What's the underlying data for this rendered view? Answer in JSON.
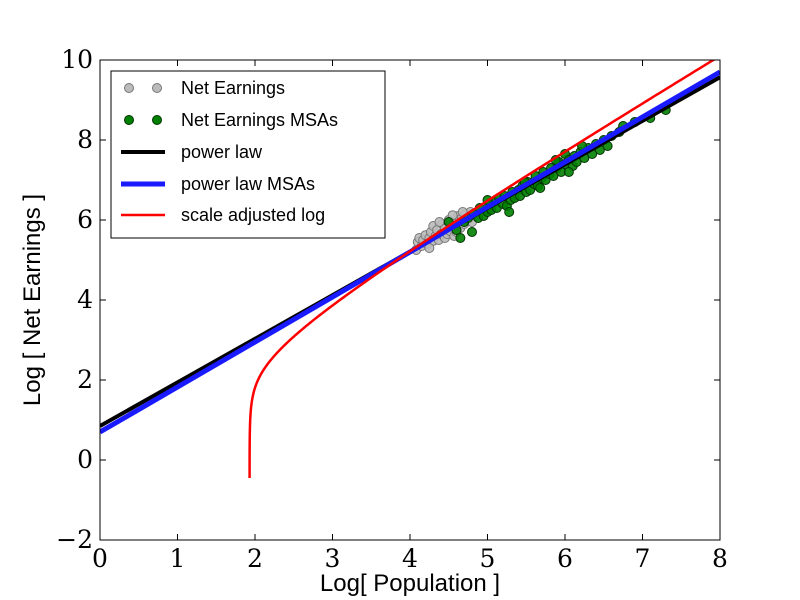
{
  "chart_data": {
    "type": "scatter",
    "xlabel": "Log[ Population ]",
    "ylabel": "Log [ Net Earnings ]",
    "xlim": [
      0,
      8
    ],
    "ylim": [
      -2,
      10
    ],
    "xticks": [
      "0",
      "1",
      "2",
      "3",
      "4",
      "5",
      "6",
      "7",
      "8"
    ],
    "yticks": [
      "−2",
      "0",
      "2",
      "4",
      "6",
      "8",
      "10"
    ],
    "legend_position": "top-left",
    "series": [
      {
        "name": "Net Earnings",
        "kind": "scatter",
        "color": "#bbbbbb",
        "edge": "#777777",
        "points": [
          [
            4.08,
            5.25
          ],
          [
            4.1,
            5.45
          ],
          [
            4.12,
            5.55
          ],
          [
            4.15,
            5.35
          ],
          [
            4.17,
            5.5
          ],
          [
            4.2,
            5.62
          ],
          [
            4.22,
            5.4
          ],
          [
            4.25,
            5.55
          ],
          [
            4.27,
            5.7
          ],
          [
            4.3,
            5.48
          ],
          [
            4.3,
            5.85
          ],
          [
            4.33,
            5.6
          ],
          [
            4.35,
            5.75
          ],
          [
            4.37,
            5.5
          ],
          [
            4.4,
            5.65
          ],
          [
            4.42,
            5.9
          ],
          [
            4.45,
            5.55
          ],
          [
            4.45,
            5.78
          ],
          [
            4.48,
            5.65
          ],
          [
            4.5,
            6.0
          ],
          [
            4.52,
            5.72
          ],
          [
            4.55,
            5.85
          ],
          [
            4.57,
            5.6
          ],
          [
            4.6,
            5.95
          ],
          [
            4.62,
            6.1
          ],
          [
            4.65,
            5.8
          ],
          [
            4.67,
            6.05
          ],
          [
            4.7,
            5.9
          ],
          [
            4.72,
            6.15
          ],
          [
            4.75,
            6.0
          ],
          [
            4.78,
            6.2
          ],
          [
            4.8,
            5.95
          ],
          [
            4.25,
            5.3
          ],
          [
            4.38,
            5.95
          ],
          [
            4.55,
            6.12
          ],
          [
            4.6,
            5.7
          ],
          [
            4.68,
            6.2
          ],
          [
            4.85,
            6.1
          ]
        ]
      },
      {
        "name": "Net Earnings MSAs",
        "kind": "scatter",
        "color": "#008000",
        "edge": "#003300",
        "points": [
          [
            4.5,
            5.95
          ],
          [
            4.6,
            5.75
          ],
          [
            4.7,
            5.95
          ],
          [
            4.75,
            6.05
          ],
          [
            4.8,
            5.7
          ],
          [
            4.82,
            6.15
          ],
          [
            4.88,
            6.05
          ],
          [
            4.9,
            6.3
          ],
          [
            4.95,
            6.1
          ],
          [
            5.0,
            6.2
          ],
          [
            5.02,
            6.4
          ],
          [
            5.05,
            6.25
          ],
          [
            5.1,
            6.45
          ],
          [
            5.12,
            6.3
          ],
          [
            5.15,
            6.55
          ],
          [
            5.2,
            6.4
          ],
          [
            5.22,
            6.6
          ],
          [
            5.25,
            6.35
          ],
          [
            5.3,
            6.5
          ],
          [
            5.32,
            6.7
          ],
          [
            5.35,
            6.55
          ],
          [
            5.4,
            6.75
          ],
          [
            5.42,
            6.6
          ],
          [
            5.45,
            6.85
          ],
          [
            5.5,
            6.7
          ],
          [
            5.52,
            6.95
          ],
          [
            5.55,
            6.75
          ],
          [
            5.6,
            6.9
          ],
          [
            5.62,
            7.1
          ],
          [
            5.65,
            6.85
          ],
          [
            5.7,
            7.05
          ],
          [
            5.72,
            7.2
          ],
          [
            5.75,
            7.0
          ],
          [
            5.8,
            7.15
          ],
          [
            5.82,
            7.3
          ],
          [
            5.85,
            7.1
          ],
          [
            5.9,
            7.3
          ],
          [
            5.92,
            7.45
          ],
          [
            5.95,
            7.2
          ],
          [
            6.0,
            7.4
          ],
          [
            6.0,
            7.65
          ],
          [
            6.05,
            7.5
          ],
          [
            6.1,
            7.35
          ],
          [
            6.12,
            7.6
          ],
          [
            6.15,
            7.45
          ],
          [
            6.2,
            7.7
          ],
          [
            6.25,
            7.55
          ],
          [
            6.3,
            7.8
          ],
          [
            6.35,
            7.65
          ],
          [
            6.4,
            7.9
          ],
          [
            6.45,
            7.75
          ],
          [
            6.5,
            8.0
          ],
          [
            6.55,
            7.85
          ],
          [
            6.6,
            8.1
          ],
          [
            6.7,
            8.2
          ],
          [
            6.75,
            8.35
          ],
          [
            6.9,
            8.45
          ],
          [
            7.1,
            8.55
          ],
          [
            7.3,
            8.75
          ],
          [
            5.0,
            6.5
          ],
          [
            5.28,
            6.2
          ],
          [
            5.48,
            6.95
          ],
          [
            5.68,
            6.8
          ],
          [
            5.88,
            7.5
          ],
          [
            6.05,
            7.2
          ],
          [
            6.22,
            7.85
          ],
          [
            4.65,
            5.55
          ]
        ]
      },
      {
        "name": "power law",
        "kind": "line",
        "color": "#000000",
        "width": 4,
        "intercept": 0.85,
        "slope": 1.09
      },
      {
        "name": "power law MSAs",
        "kind": "line",
        "color": "#1a1aff",
        "width": 5,
        "intercept": 0.7,
        "slope": 1.125
      },
      {
        "name": "scale adjusted log",
        "kind": "curve",
        "color": "#ff0000",
        "width": 2.5,
        "x0": 1.93,
        "b": 1.13,
        "c": 0.34,
        "xmax": 8
      }
    ]
  }
}
